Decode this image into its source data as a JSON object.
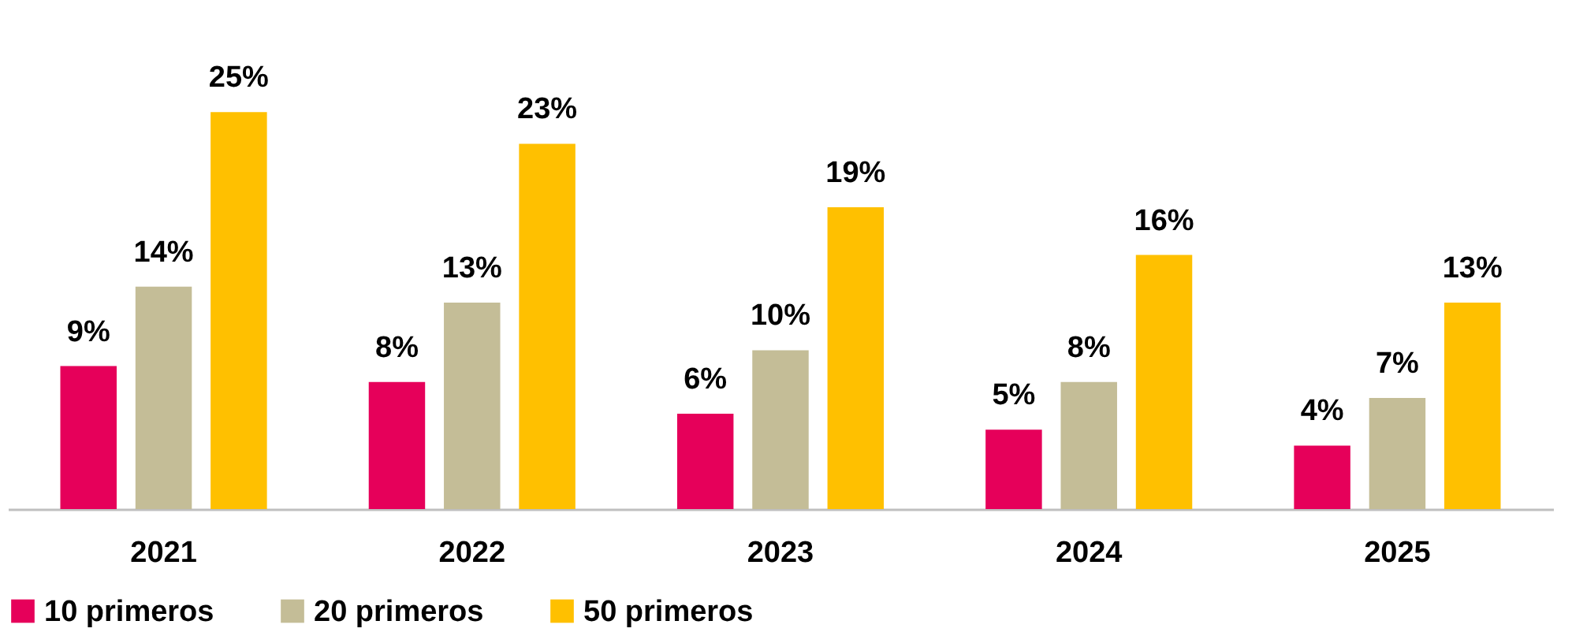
{
  "chart_data": {
    "type": "bar",
    "categories": [
      "2021",
      "2022",
      "2023",
      "2024",
      "2025"
    ],
    "series": [
      {
        "name": "10 primeros",
        "color": "#e6005a",
        "values": [
          9,
          8,
          6,
          5,
          4
        ],
        "value_labels": [
          "9%",
          "8%",
          "6%",
          "5%",
          "4%"
        ]
      },
      {
        "name": "20 primeros",
        "color": "#c4bd97",
        "values": [
          14,
          13,
          10,
          8,
          7
        ],
        "value_labels": [
          "14%",
          "13%",
          "10%",
          "8%",
          "7%"
        ]
      },
      {
        "name": "50 primeros",
        "color": "#ffc000",
        "values": [
          25,
          23,
          19,
          16,
          13
        ],
        "value_labels": [
          "25%",
          "23%",
          "19%",
          "16%",
          "13%"
        ]
      }
    ],
    "legend": "bottom",
    "grid": false,
    "tick_labels": "x"
  }
}
